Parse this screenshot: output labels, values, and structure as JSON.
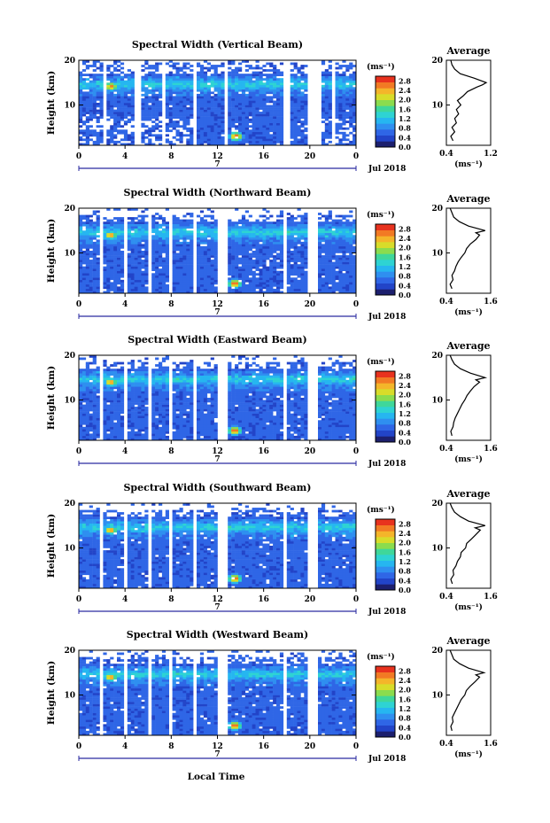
{
  "figure": {
    "xlabel": "Local Time",
    "date_label": "Jul 2018",
    "day_marker": "7",
    "colorbar_unit": "(ms⁻¹)",
    "average_title": "Average"
  },
  "colorscale": [
    "#1c1f6e",
    "#2244c8",
    "#2f66e6",
    "#2f8ff0",
    "#26b6f0",
    "#2ed3d3",
    "#3fd79a",
    "#8bdc4e",
    "#d8dc2a",
    "#f4b52a",
    "#f27a24",
    "#e8321e"
  ],
  "chart_data": [
    {
      "type": "heatmap",
      "title": "Spectral Width (Vertical Beam)",
      "ylabel": "Height (km)",
      "x_ticks": [
        "0",
        "4",
        "8",
        "12",
        "16",
        "20",
        "0"
      ],
      "xlim": [
        0,
        24
      ],
      "y_ticks": [
        "10",
        "20"
      ],
      "ylim": [
        1,
        20
      ],
      "colorbar": {
        "ticks": [
          "2.8",
          "2.4",
          "2.0",
          "1.6",
          "1.2",
          "0.8",
          "0.4",
          "0.0"
        ],
        "range": [
          0,
          3.0
        ],
        "unit": "(ms⁻¹)"
      },
      "data_gaps_hours": [
        [
          2.0,
          2.3
        ],
        [
          4.9,
          5.3
        ],
        [
          7.2,
          7.6
        ],
        [
          9.8,
          10.2
        ],
        [
          12.6,
          12.9
        ],
        [
          17.8,
          18.2
        ],
        [
          19.8,
          20.9
        ],
        [
          21.9,
          22.2
        ]
      ],
      "hotspots": [
        {
          "t": 2.8,
          "h": 14.2,
          "value": 2.6
        },
        {
          "t": 13.6,
          "h": 3.0,
          "value": 2.8
        }
      ],
      "average_profile": {
        "xlabel": "(ms⁻¹)",
        "x_ticks": [
          "0.4",
          "1.2"
        ],
        "xlim": [
          0.4,
          1.2
        ],
        "heights": [
          2,
          3,
          4,
          5,
          6,
          7,
          8,
          9,
          10,
          11,
          12,
          13,
          14,
          14.5,
          15,
          16,
          17,
          18,
          19,
          20
        ],
        "values": [
          0.52,
          0.48,
          0.55,
          0.5,
          0.58,
          0.55,
          0.62,
          0.58,
          0.66,
          0.6,
          0.7,
          0.78,
          0.95,
          1.05,
          1.12,
          0.9,
          0.65,
          0.55,
          0.5,
          0.48
        ]
      }
    },
    {
      "type": "heatmap",
      "title": "Spectral Width (Northward Beam)",
      "ylabel": "Height (km)",
      "x_ticks": [
        "0",
        "4",
        "8",
        "12",
        "16",
        "20",
        "0"
      ],
      "xlim": [
        0,
        24
      ],
      "y_ticks": [
        "10",
        "20"
      ],
      "ylim": [
        1,
        20
      ],
      "colorbar": {
        "ticks": [
          "2.8",
          "2.4",
          "2.0",
          "1.6",
          "1.2",
          "0.8",
          "0.4",
          "0.0"
        ],
        "range": [
          0,
          3.0
        ],
        "unit": "(ms⁻¹)"
      },
      "data_gaps_hours": [
        [
          1.9,
          2.2
        ],
        [
          4.0,
          4.3
        ],
        [
          5.9,
          6.3
        ],
        [
          7.9,
          8.2
        ],
        [
          9.9,
          10.3
        ],
        [
          12.0,
          12.8
        ],
        [
          17.6,
          18.0
        ],
        [
          19.8,
          20.8
        ]
      ],
      "hotspots": [
        {
          "t": 2.8,
          "h": 14.0,
          "value": 2.6
        },
        {
          "t": 13.5,
          "h": 3.2,
          "value": 2.8
        }
      ],
      "average_profile": {
        "xlabel": "(ms⁻¹)",
        "x_ticks": [
          "0.4",
          "1.6"
        ],
        "xlim": [
          0.4,
          1.6
        ],
        "heights": [
          2,
          3,
          4,
          5,
          6,
          7,
          8,
          9,
          10,
          11,
          12,
          13,
          14,
          14.5,
          15,
          16,
          17,
          18,
          19,
          20
        ],
        "values": [
          0.55,
          0.5,
          0.58,
          0.55,
          0.62,
          0.66,
          0.72,
          0.8,
          0.9,
          0.95,
          1.05,
          1.2,
          1.3,
          1.2,
          1.45,
          1.0,
          0.75,
          0.6,
          0.55,
          0.5
        ]
      }
    },
    {
      "type": "heatmap",
      "title": "Spectral Width (Eastward Beam)",
      "ylabel": "Height (km)",
      "x_ticks": [
        "0",
        "4",
        "8",
        "12",
        "16",
        "20",
        "0"
      ],
      "xlim": [
        0,
        24
      ],
      "y_ticks": [
        "10",
        "20"
      ],
      "ylim": [
        1,
        20
      ],
      "colorbar": {
        "ticks": [
          "2.8",
          "2.4",
          "2.0",
          "1.6",
          "1.2",
          "0.8",
          "0.4",
          "0.0"
        ],
        "range": [
          0,
          3.0
        ],
        "unit": "(ms⁻¹)"
      },
      "data_gaps_hours": [
        [
          1.9,
          2.2
        ],
        [
          4.0,
          4.3
        ],
        [
          5.9,
          6.3
        ],
        [
          7.9,
          8.2
        ],
        [
          9.9,
          10.3
        ],
        [
          12.0,
          12.8
        ],
        [
          17.6,
          18.0
        ],
        [
          19.8,
          20.8
        ]
      ],
      "hotspots": [
        {
          "t": 2.8,
          "h": 14.0,
          "value": 2.6
        },
        {
          "t": 13.5,
          "h": 3.2,
          "value": 2.8
        }
      ],
      "average_profile": {
        "xlabel": "(ms⁻¹)",
        "x_ticks": [
          "0.4",
          "1.6"
        ],
        "xlim": [
          0.4,
          1.6
        ],
        "heights": [
          2,
          3,
          4,
          5,
          6,
          7,
          8,
          9,
          10,
          11,
          12,
          13,
          14,
          14.5,
          15,
          16,
          17,
          18,
          19,
          20
        ],
        "values": [
          0.55,
          0.52,
          0.58,
          0.6,
          0.64,
          0.7,
          0.76,
          0.82,
          0.9,
          0.96,
          1.05,
          1.15,
          1.3,
          1.2,
          1.45,
          1.05,
          0.78,
          0.62,
          0.55,
          0.5
        ]
      }
    },
    {
      "type": "heatmap",
      "title": "Spectral Width (Southward Beam)",
      "ylabel": "Height (km)",
      "x_ticks": [
        "0",
        "4",
        "8",
        "12",
        "16",
        "20",
        "0"
      ],
      "xlim": [
        0,
        24
      ],
      "y_ticks": [
        "10",
        "20"
      ],
      "ylim": [
        1,
        20
      ],
      "colorbar": {
        "ticks": [
          "2.8",
          "2.4",
          "2.0",
          "1.6",
          "1.2",
          "0.8",
          "0.4",
          "0.0"
        ],
        "range": [
          0,
          3.0
        ],
        "unit": "(ms⁻¹)"
      },
      "data_gaps_hours": [
        [
          1.9,
          2.2
        ],
        [
          4.0,
          4.3
        ],
        [
          5.9,
          6.3
        ],
        [
          7.9,
          8.2
        ],
        [
          9.9,
          10.3
        ],
        [
          12.0,
          12.8
        ],
        [
          17.6,
          18.0
        ],
        [
          19.8,
          20.8
        ]
      ],
      "hotspots": [
        {
          "t": 2.8,
          "h": 14.0,
          "value": 2.6
        },
        {
          "t": 13.5,
          "h": 3.2,
          "value": 2.8
        }
      ],
      "average_profile": {
        "xlabel": "(ms⁻¹)",
        "x_ticks": [
          "0.4",
          "1.6"
        ],
        "xlim": [
          0.4,
          1.6
        ],
        "heights": [
          2,
          3,
          4,
          5,
          6,
          7,
          8,
          9,
          10,
          11,
          12,
          13,
          14,
          14.5,
          15,
          16,
          17,
          18,
          19,
          20
        ],
        "values": [
          0.56,
          0.52,
          0.6,
          0.58,
          0.66,
          0.7,
          0.78,
          0.8,
          0.92,
          0.95,
          1.08,
          1.2,
          1.32,
          1.18,
          1.45,
          1.0,
          0.78,
          0.62,
          0.55,
          0.5
        ]
      }
    },
    {
      "type": "heatmap",
      "title": "Spectral Width (Westward Beam)",
      "ylabel": "Height (km)",
      "x_ticks": [
        "0",
        "4",
        "8",
        "12",
        "16",
        "20",
        "0"
      ],
      "xlim": [
        0,
        24
      ],
      "y_ticks": [
        "10",
        "20"
      ],
      "ylim": [
        1,
        20
      ],
      "colorbar": {
        "ticks": [
          "2.8",
          "2.4",
          "2.0",
          "1.6",
          "1.2",
          "0.8",
          "0.4",
          "0.0"
        ],
        "range": [
          0,
          3.0
        ],
        "unit": "(ms⁻¹)"
      },
      "data_gaps_hours": [
        [
          1.9,
          2.2
        ],
        [
          4.0,
          4.3
        ],
        [
          5.9,
          6.3
        ],
        [
          7.9,
          8.2
        ],
        [
          9.9,
          10.3
        ],
        [
          12.0,
          12.8
        ],
        [
          17.6,
          18.0
        ],
        [
          19.8,
          20.8
        ]
      ],
      "hotspots": [
        {
          "t": 2.8,
          "h": 14.0,
          "value": 2.6
        },
        {
          "t": 13.5,
          "h": 3.2,
          "value": 2.8
        }
      ],
      "average_profile": {
        "xlabel": "(ms⁻¹)",
        "x_ticks": [
          "0.4",
          "1.6"
        ],
        "xlim": [
          0.4,
          1.6
        ],
        "heights": [
          2,
          3,
          4,
          5,
          6,
          7,
          8,
          9,
          10,
          11,
          12,
          13,
          14,
          14.5,
          15,
          16,
          17,
          18,
          19,
          20
        ],
        "values": [
          0.55,
          0.52,
          0.58,
          0.56,
          0.62,
          0.68,
          0.74,
          0.8,
          0.9,
          0.94,
          1.05,
          1.18,
          1.3,
          1.2,
          1.42,
          1.0,
          0.76,
          0.6,
          0.55,
          0.5
        ]
      }
    }
  ]
}
